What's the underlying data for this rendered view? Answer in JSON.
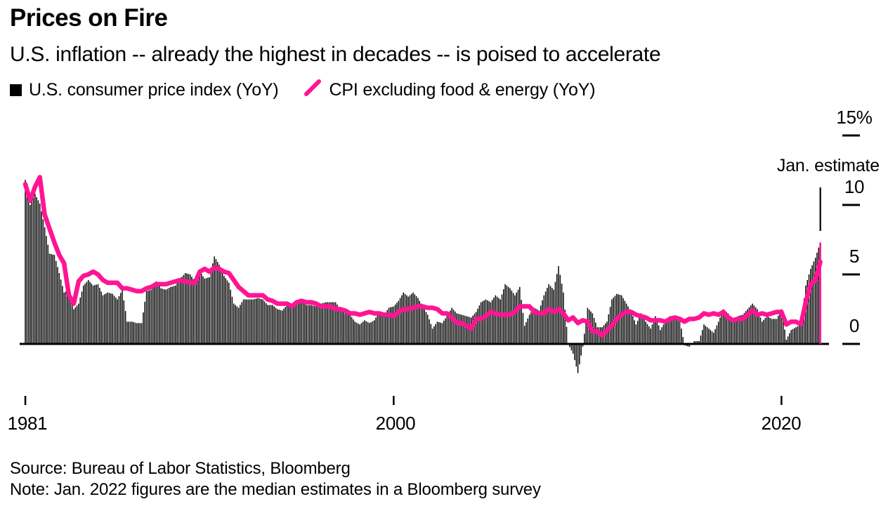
{
  "header": {
    "title": "Prices on Fire",
    "subtitle": "U.S. inflation -- already the highest in decades -- is poised to accelerate"
  },
  "legend": {
    "bars_label": "U.S. consumer price index (YoY)",
    "line_label": "CPI excluding food & energy (YoY)"
  },
  "annotation": {
    "label": "Jan. estimate"
  },
  "axes": {
    "y_tick_labels": {
      "t15": "15%",
      "t10": "10",
      "t5": "5",
      "t0": "0"
    },
    "x_tick_labels": {
      "t1981": "1981",
      "t2000": "2000",
      "t2020": "2020"
    }
  },
  "footer": {
    "source": "Source: Bureau of Labor Statistics, Bloomberg",
    "note": "Note: Jan. 2022 figures are the median estimates in a Bloomberg survey"
  },
  "colors": {
    "bars": "#0d0d0d",
    "line": "#ff1493",
    "estimate_bar": "#ff1493",
    "axis": "#000000",
    "background": "#ffffff"
  },
  "chart_data": {
    "type": "bar+line",
    "title": "Prices on Fire",
    "x_start_year": 1981.0,
    "x_step_years": 0.25,
    "x_end_year": 2022.0,
    "ylim": [
      -3,
      15
    ],
    "y_ticks": [
      0,
      5,
      10,
      15
    ],
    "x_ticks_years": [
      1981,
      2000,
      2020
    ],
    "grid": false,
    "legend_position": "top-left",
    "series": [
      {
        "name": "U.S. consumer price index (YoY)",
        "type": "bar",
        "unit": "%",
        "values_quarterly": [
          11.8,
          10.0,
          10.8,
          10.1,
          8.4,
          6.5,
          6.4,
          5.1,
          3.7,
          3.9,
          2.5,
          2.9,
          4.2,
          4.6,
          4.2,
          4.3,
          3.5,
          3.7,
          3.6,
          3.2,
          3.9,
          1.6,
          1.6,
          1.5,
          1.5,
          3.8,
          3.9,
          4.5,
          4.0,
          3.9,
          4.1,
          4.2,
          4.7,
          5.1,
          5.0,
          4.5,
          5.2,
          4.7,
          4.8,
          6.3,
          5.7,
          4.9,
          4.4,
          2.9,
          2.6,
          3.2,
          3.2,
          3.2,
          3.3,
          3.2,
          2.8,
          2.8,
          2.5,
          2.4,
          2.8,
          2.6,
          2.8,
          3.1,
          2.8,
          2.8,
          2.7,
          2.9,
          3.0,
          3.0,
          3.0,
          2.5,
          2.2,
          2.1,
          1.6,
          1.4,
          1.7,
          1.5,
          1.7,
          2.3,
          2.1,
          2.6,
          2.7,
          3.1,
          3.7,
          3.4,
          3.7,
          3.3,
          2.7,
          2.1,
          1.1,
          1.6,
          1.5,
          2.0,
          2.6,
          2.2,
          2.1,
          2.0,
          1.9,
          2.3,
          3.0,
          3.2,
          3.0,
          3.5,
          3.2,
          4.3,
          4.0,
          3.5,
          4.1,
          1.3,
          2.1,
          2.6,
          2.4,
          3.5,
          4.3,
          3.9,
          5.6,
          3.7,
          0.0,
          -0.7,
          -2.1,
          -0.2,
          2.6,
          2.2,
          1.2,
          1.2,
          1.6,
          3.2,
          3.6,
          3.5,
          2.9,
          2.3,
          1.4,
          2.2,
          1.6,
          1.1,
          2.0,
          1.0,
          1.6,
          2.0,
          2.0,
          1.7,
          -0.1,
          -0.2,
          0.2,
          0.2,
          1.4,
          1.1,
          0.8,
          1.6,
          2.5,
          2.2,
          1.7,
          2.0,
          2.1,
          2.5,
          2.9,
          2.5,
          1.6,
          2.0,
          1.8,
          1.8,
          2.5,
          0.3,
          1.0,
          1.2,
          1.4,
          4.2,
          5.4,
          6.2,
          7.3
        ]
      },
      {
        "name": "CPI excluding food & energy (YoY)",
        "type": "line",
        "unit": "%",
        "values_quarterly": [
          11.5,
          10.3,
          11.3,
          12.0,
          9.3,
          8.3,
          7.3,
          6.4,
          5.8,
          3.5,
          2.9,
          4.5,
          4.9,
          5.0,
          5.2,
          5.0,
          4.6,
          4.4,
          4.4,
          4.4,
          4.0,
          4.0,
          3.9,
          3.8,
          3.8,
          4.0,
          4.1,
          4.3,
          4.3,
          4.3,
          4.4,
          4.5,
          4.6,
          4.5,
          4.4,
          4.4,
          5.2,
          5.4,
          5.2,
          5.5,
          5.4,
          5.2,
          5.1,
          4.6,
          4.1,
          3.8,
          3.5,
          3.5,
          3.5,
          3.5,
          3.2,
          3.1,
          2.9,
          2.9,
          2.9,
          2.7,
          3.0,
          3.1,
          3.0,
          3.0,
          2.9,
          2.7,
          2.7,
          2.7,
          2.5,
          2.5,
          2.4,
          2.2,
          2.2,
          2.1,
          2.2,
          2.3,
          2.2,
          2.2,
          2.1,
          2.1,
          2.0,
          2.3,
          2.5,
          2.5,
          2.6,
          2.7,
          2.7,
          2.6,
          2.6,
          2.5,
          2.2,
          2.2,
          1.9,
          1.5,
          1.5,
          1.3,
          1.1,
          1.8,
          1.8,
          2.0,
          2.3,
          2.2,
          2.1,
          2.1,
          2.1,
          2.3,
          2.7,
          2.7,
          2.7,
          2.3,
          2.2,
          2.2,
          2.5,
          2.3,
          2.5,
          2.2,
          1.7,
          1.9,
          1.5,
          1.7,
          1.6,
          0.9,
          0.9,
          0.6,
          1.0,
          1.3,
          1.8,
          2.1,
          2.3,
          2.3,
          2.1,
          2.0,
          1.9,
          1.7,
          1.7,
          1.7,
          1.6,
          1.8,
          1.9,
          1.8,
          1.6,
          1.8,
          1.8,
          1.9,
          2.2,
          2.1,
          2.2,
          2.1,
          2.3,
          1.9,
          1.7,
          1.8,
          1.8,
          2.1,
          2.4,
          2.1,
          2.2,
          2.1,
          2.2,
          2.3,
          2.3,
          1.4,
          1.6,
          1.6,
          1.4,
          3.0,
          4.3,
          4.6,
          5.9
        ]
      }
    ],
    "estimate_point": {
      "label": "Jan. estimate",
      "year": 2022.0,
      "cpi_yoy": 7.3,
      "core_cpi_yoy": 5.9
    }
  }
}
